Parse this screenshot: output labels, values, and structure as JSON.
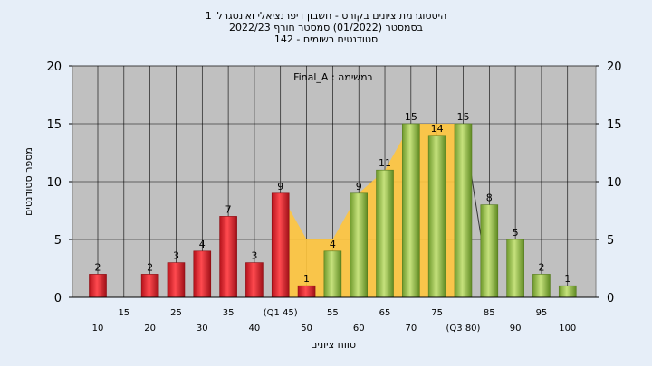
{
  "chart_data": {
    "type": "bar",
    "title_lines": [
      "היסטוגרמת ציונים בקורס - חשבון דיפרנציאלי ואינטגרלי 1",
      "בסמסטר  (01/2022)  סמסטר חורף  2022/23",
      "142 - סטודנטים רשומים"
    ],
    "annotation": "Final_A : במשימה",
    "xlabel": "טווח ציונים",
    "ylabel": "מספר סטודנטים",
    "ylim": [
      0,
      20
    ],
    "yticks": [
      "0",
      "5",
      "10",
      "15",
      "20"
    ],
    "categories": [
      10,
      15,
      20,
      25,
      30,
      35,
      40,
      45,
      50,
      55,
      60,
      65,
      70,
      75,
      80,
      85,
      90,
      95,
      100
    ],
    "tick_labels": [
      "10",
      "15",
      "20",
      "25",
      "30",
      "35",
      "40",
      "(Q1 45)",
      "50",
      "55",
      "60",
      "65",
      "70",
      "75",
      "(Q3 80)",
      "85",
      "90",
      "95",
      "100"
    ],
    "values": [
      2,
      0,
      2,
      3,
      4,
      7,
      3,
      9,
      1,
      4,
      9,
      11,
      15,
      14,
      15,
      8,
      5,
      2,
      1
    ],
    "value_labels": [
      "2",
      "",
      "2",
      "3",
      "4",
      "7",
      "3",
      "9",
      "1",
      "4",
      "9",
      "11",
      "15",
      "14",
      "15",
      "8",
      "5",
      "2",
      "1"
    ],
    "fail_threshold": 50,
    "interquartile_band": {
      "from": 45,
      "to": 80,
      "upper": [
        9,
        5,
        5,
        9,
        11,
        15,
        15,
        15
      ]
    },
    "grid": true,
    "colors": {
      "fail": "#e8232b",
      "pass": "#9cc545",
      "band": "#ffc53d",
      "plot_bg": "#c0c0c0",
      "page_bg": "#e6eef8"
    }
  }
}
